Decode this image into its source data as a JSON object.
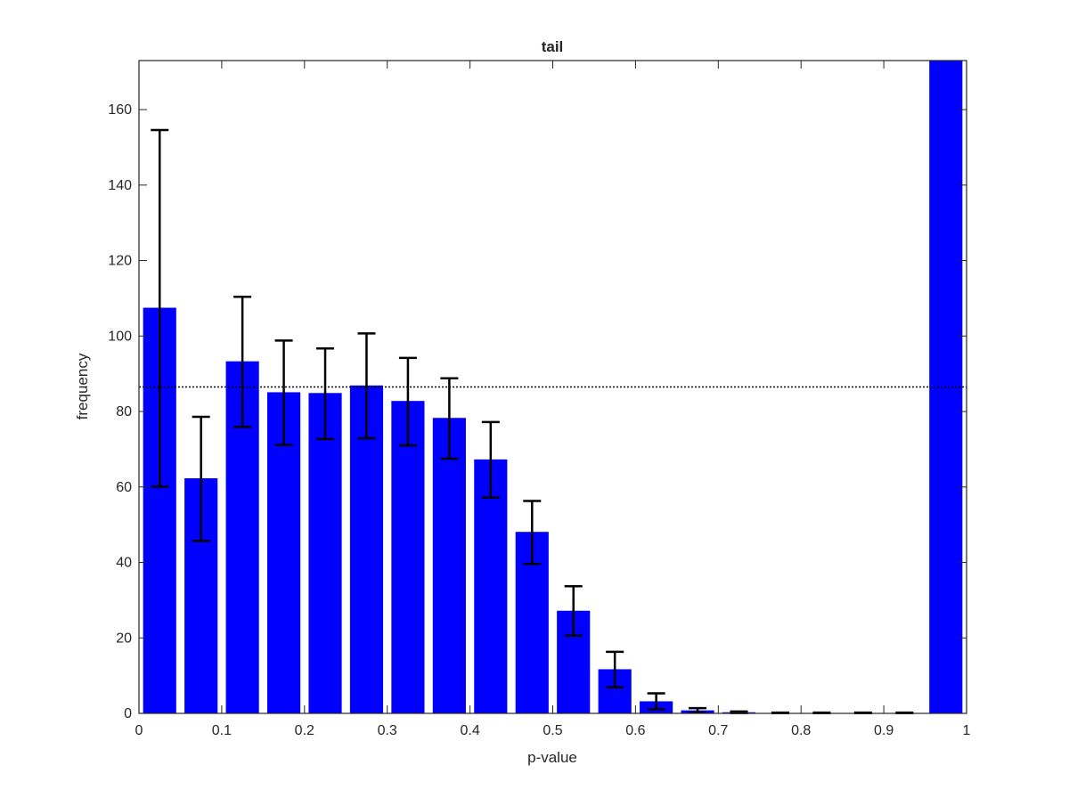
{
  "chart_data": {
    "type": "bar",
    "title": "tail",
    "xlabel": "p-value",
    "ylabel": "frequency",
    "xlim": [
      0,
      1
    ],
    "ylim": [
      0,
      173
    ],
    "xticks": [
      0,
      0.1,
      0.2,
      0.3,
      0.4,
      0.5,
      0.6,
      0.7,
      0.8,
      0.9,
      1
    ],
    "xtick_labels": [
      "0",
      "0.1",
      "0.2",
      "0.3",
      "0.4",
      "0.5",
      "0.6",
      "0.7",
      "0.8",
      "0.9",
      "1"
    ],
    "yticks": [
      0,
      20,
      40,
      60,
      80,
      100,
      120,
      140,
      160
    ],
    "ytick_labels": [
      "0",
      "20",
      "40",
      "60",
      "80",
      "100",
      "120",
      "140",
      "160"
    ],
    "grid": false,
    "bar_color": "#0000ff",
    "bin_centers": [
      0.025,
      0.075,
      0.125,
      0.175,
      0.225,
      0.275,
      0.325,
      0.375,
      0.425,
      0.475,
      0.525,
      0.575,
      0.625,
      0.675,
      0.725,
      0.775,
      0.825,
      0.875,
      0.925,
      0.975
    ],
    "values": [
      107.5,
      62.3,
      93.3,
      85.1,
      84.9,
      86.9,
      82.8,
      78.3,
      67.3,
      48.1,
      27.2,
      11.7,
      3.2,
      0.8,
      0.3,
      0.1,
      0.1,
      0.1,
      0.1,
      173
    ],
    "error_low": [
      60.1,
      45.7,
      75.9,
      71.1,
      72.7,
      72.9,
      71.0,
      67.5,
      57.2,
      39.6,
      20.6,
      6.9,
      1.1,
      0.2,
      0.1,
      0.05,
      0.05,
      0.05,
      0.05,
      null
    ],
    "error_high": [
      154.6,
      78.6,
      110.4,
      98.8,
      96.7,
      100.7,
      94.2,
      88.8,
      77.2,
      56.3,
      33.7,
      16.3,
      5.3,
      1.4,
      0.5,
      0.2,
      0.2,
      0.2,
      0.2,
      null
    ],
    "reference_line": {
      "y": 86.5,
      "style": "dotted",
      "color": "#000000"
    }
  }
}
